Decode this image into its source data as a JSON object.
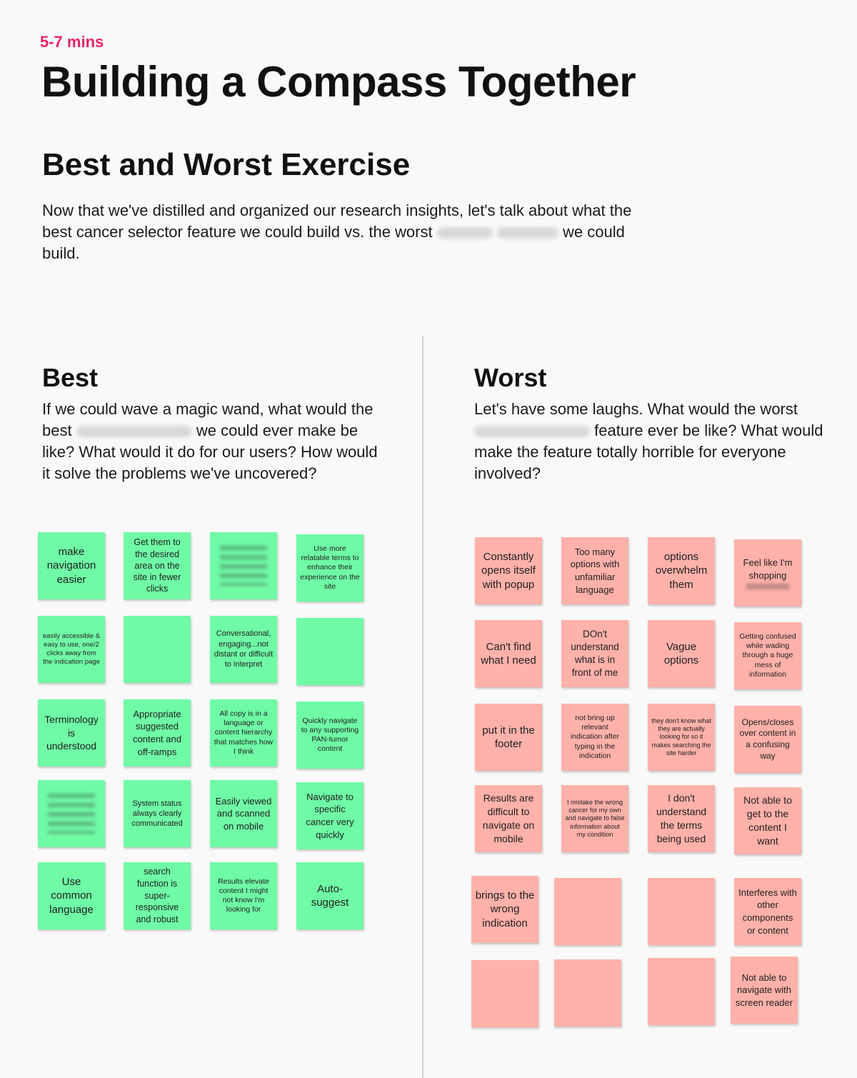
{
  "header": {
    "duration": "5-7 mins",
    "title": "Building a Compass Together",
    "subtitle": "Best and Worst Exercise",
    "intro_part1": "Now that we've distilled and organized our research insights, let's talk about what the best cancer selector feature we could build vs. the worst",
    "intro_part2": "we could build."
  },
  "best": {
    "heading": "Best",
    "question_part1": "If we could wave a magic wand, what would the best",
    "question_part2": "we could ever make be like? What would it do for our users? How would it solve the problems we've uncovered?",
    "notes": [
      "make navigation easier",
      "Get them to the desired area on the site in fewer clicks",
      "",
      "Use more relatable terms to enhance their experience on the site",
      "easily accessible & easy to use, one/2 clicks away from the indication page",
      "",
      "Conversational, engaging...not distant or difficult to interpret",
      "",
      "Terminology is understood",
      "Appropriate suggested content and off-ramps",
      "All copy is in a language or content hierarchy that matches how I think",
      "Quickly navigate to any supporting PAN-tumor content",
      "",
      "System status always clearly communicated",
      "Easily viewed and scanned on mobile",
      "Navigate to specific cancer very quickly",
      "Use common language",
      "search function is super-responsive and robust",
      "Results elevate content I might not know I'm looking for",
      "Auto-suggest"
    ]
  },
  "worst": {
    "heading": "Worst",
    "question_part1": "Let's have some laughs. What would the worst",
    "question_part2": "feature ever be like? What would make the feature totally horrible for everyone involved?",
    "notes": [
      "Constantly opens itself with popup",
      "Too many options with unfamiliar language",
      "options overwhelm them",
      "Feel like I'm shopping",
      "Can't find what I need",
      "DOn't understand what is in front of me",
      "Vague options",
      "Getting confused while wading through a huge mess of information",
      "put it in the footer",
      "not bring up relevant indication after typing in the indication",
      "they don't know what they are actually looking for so it makes searching the site harder",
      "Opens/closes over content in a confusing way",
      "Results are difficult to navigate on mobile",
      "I mistake the wrong cancer for my own and navigate to false information about my condition",
      "I don't understand the terms being used",
      "Not able to get to the content I want",
      "brings to the wrong indication",
      "",
      "",
      "Interferes with other components or content",
      "",
      "",
      "",
      "Not able to navigate with screen reader"
    ]
  }
}
